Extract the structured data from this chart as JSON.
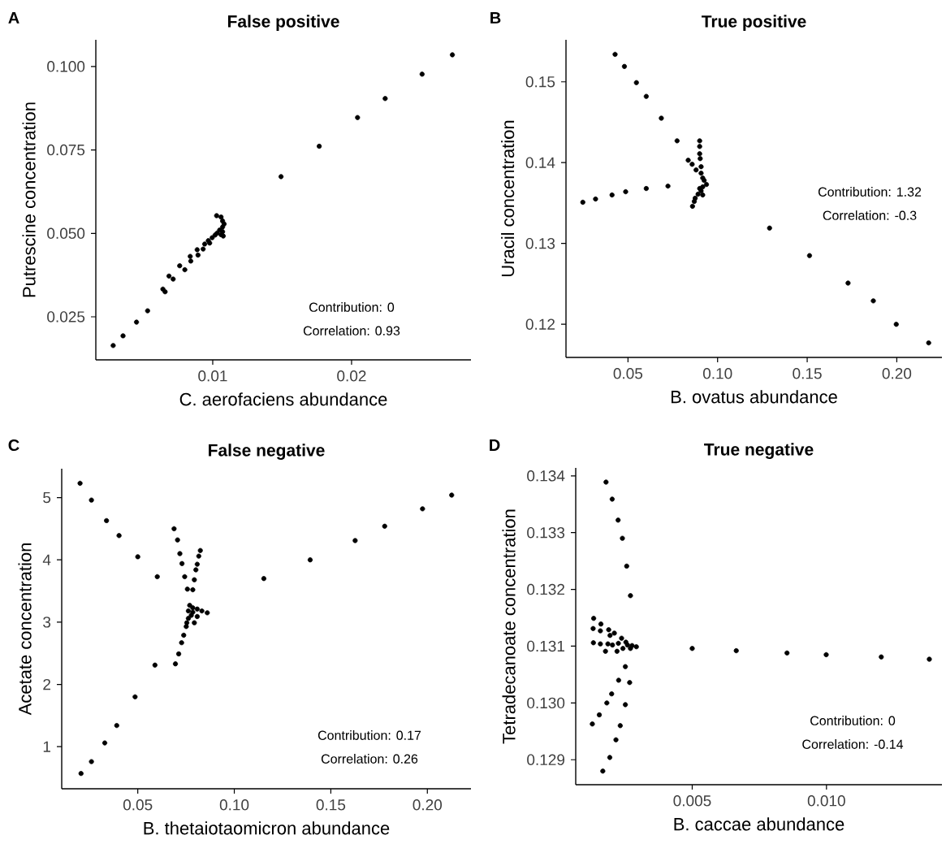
{
  "chart_data": [
    {
      "type": "scatter",
      "title": "False positive",
      "xlabel": "C. aerofaciens abundance",
      "ylabel": "Putrescine concentration",
      "annotations": [
        "A",
        "Contribution: 0",
        "Correlation: 0.93"
      ],
      "color": "#000000",
      "marker": "circle",
      "xlim": [
        0.00158,
        0.0286
      ],
      "ylim": [
        0.0121,
        0.108
      ],
      "xticks": [
        {
          "value": 0.01,
          "label": "0.01"
        },
        {
          "value": 0.02,
          "label": "0.02"
        }
      ],
      "yticks": [
        {
          "value": 0.025,
          "label": "0.025"
        },
        {
          "value": 0.05,
          "label": "0.050"
        },
        {
          "value": 0.075,
          "label": "0.075"
        },
        {
          "value": 0.1,
          "label": "0.100"
        }
      ],
      "x": [
        0.00283,
        0.00354,
        0.00451,
        0.00531,
        0.00641,
        0.00657,
        0.00685,
        0.00715,
        0.00762,
        0.00799,
        0.00838,
        0.00842,
        0.00888,
        0.00894,
        0.00931,
        0.00942,
        0.00968,
        0.00978,
        0.00996,
        0.01017,
        0.01032,
        0.0105,
        0.01071,
        0.01076,
        0.01071,
        0.01082,
        0.01071,
        0.0106,
        0.01028,
        0.0106,
        0.01492,
        0.01767,
        0.02043,
        0.02242,
        0.02508,
        0.02726
      ],
      "values": [
        0.0164,
        0.0193,
        0.0234,
        0.0268,
        0.0333,
        0.0325,
        0.0372,
        0.0363,
        0.0403,
        0.0391,
        0.0431,
        0.0417,
        0.0451,
        0.0435,
        0.0453,
        0.0468,
        0.0478,
        0.0471,
        0.0487,
        0.0495,
        0.0501,
        0.051,
        0.0505,
        0.0492,
        0.0519,
        0.0528,
        0.0537,
        0.0549,
        0.0553,
        0.0496,
        0.067,
        0.0761,
        0.0847,
        0.0904,
        0.0977,
        0.1035
      ]
    },
    {
      "type": "scatter",
      "title": "True positive",
      "xlabel": "B. ovatus abundance",
      "ylabel": "Uracil concentration",
      "annotations": [
        "B",
        "Contribution: 1.32",
        "Correlation: -0.3"
      ],
      "color": "#000000",
      "marker": "circle",
      "xlim": [
        0.0154,
        0.2252
      ],
      "ylim": [
        0.1159,
        0.1552
      ],
      "xticks": [
        {
          "value": 0.05,
          "label": "0.05"
        },
        {
          "value": 0.1,
          "label": "0.10"
        },
        {
          "value": 0.15,
          "label": "0.15"
        },
        {
          "value": 0.2,
          "label": "0.20"
        }
      ],
      "yticks": [
        {
          "value": 0.12,
          "label": "0.12"
        },
        {
          "value": 0.13,
          "label": "0.13"
        },
        {
          "value": 0.14,
          "label": "0.14"
        },
        {
          "value": 0.15,
          "label": "0.15"
        }
      ],
      "x": [
        0.0428,
        0.048,
        0.0547,
        0.0602,
        0.0686,
        0.0774,
        0.0836,
        0.0858,
        0.09,
        0.09,
        0.09,
        0.0903,
        0.0908,
        0.088,
        0.0908,
        0.0917,
        0.0925,
        0.0938,
        0.0917,
        0.0908,
        0.0917,
        0.0891,
        0.0875,
        0.087,
        0.086,
        0.09,
        0.0248,
        0.0319,
        0.0411,
        0.0487,
        0.0602,
        0.0723,
        0.129,
        0.1513,
        0.1728,
        0.1869,
        0.1997,
        0.2178
      ],
      "values": [
        0.1534,
        0.1519,
        0.1499,
        0.1482,
        0.1455,
        0.1427,
        0.1403,
        0.1398,
        0.1427,
        0.142,
        0.1411,
        0.1405,
        0.1395,
        0.1391,
        0.1387,
        0.1381,
        0.1378,
        0.1373,
        0.137,
        0.1365,
        0.136,
        0.1361,
        0.1356,
        0.1352,
        0.1346,
        0.1368,
        0.1351,
        0.1355,
        0.136,
        0.1364,
        0.1368,
        0.1371,
        0.1319,
        0.1285,
        0.1251,
        0.1229,
        0.12,
        0.1177
      ]
    },
    {
      "type": "scatter",
      "title": "False negative",
      "xlabel": "B. thetaiotaomicron abundance",
      "ylabel": "Acetate concentration",
      "annotations": [
        "C",
        "Contribution: 0.17",
        "Correlation: 0.26"
      ],
      "color": "#000000",
      "marker": "circle",
      "xlim": [
        0.0106,
        0.2226
      ],
      "ylim": [
        0.324,
        5.464
      ],
      "xticks": [
        {
          "value": 0.05,
          "label": "0.05"
        },
        {
          "value": 0.1,
          "label": "0.10"
        },
        {
          "value": 0.15,
          "label": "0.15"
        },
        {
          "value": 0.2,
          "label": "0.20"
        }
      ],
      "yticks": [
        1,
        2,
        3,
        4,
        5
      ],
      "x": [
        0.0201,
        0.026,
        0.0338,
        0.0403,
        0.05,
        0.0601,
        0.0688,
        0.0706,
        0.0718,
        0.0729,
        0.0743,
        0.0757,
        0.0785,
        0.0793,
        0.0801,
        0.0808,
        0.0816,
        0.0824,
        0.0769,
        0.0785,
        0.0808,
        0.0832,
        0.086,
        0.0762,
        0.0777,
        0.0762,
        0.0754,
        0.0751,
        0.0793,
        0.0808,
        0.0785,
        0.0738,
        0.0727,
        0.0712,
        0.0695,
        0.0589,
        0.0486,
        0.0391,
        0.0329,
        0.026,
        0.0206,
        0.1153,
        0.1393,
        0.1626,
        0.1779,
        0.1975,
        0.2126
      ],
      "values": [
        5.23,
        4.96,
        4.63,
        4.39,
        4.05,
        3.73,
        4.5,
        4.32,
        4.1,
        3.94,
        3.73,
        3.53,
        3.52,
        3.68,
        3.84,
        3.93,
        4.06,
        4.15,
        3.27,
        3.23,
        3.21,
        3.18,
        3.15,
        3.18,
        3.11,
        3.06,
        2.99,
        2.93,
        2.99,
        3.09,
        3.16,
        2.79,
        2.67,
        2.49,
        2.33,
        2.31,
        1.8,
        1.34,
        1.06,
        0.76,
        0.57,
        3.7,
        4.0,
        4.31,
        4.54,
        4.82,
        5.04
      ]
    },
    {
      "type": "scatter",
      "title": "True negative",
      "xlabel": "B. caccae abundance",
      "ylabel": "Tetradecanoate concentration",
      "annotations": [
        "D",
        "Contribution: 0",
        "Correlation: -0.14"
      ],
      "color": "#000000",
      "marker": "circle",
      "xlim": [
        0.000662,
        0.0143
      ],
      "ylim": [
        0.12856,
        0.13414
      ],
      "xticks": [
        {
          "value": 0.005,
          "label": "0.005"
        },
        {
          "value": 0.01,
          "label": "0.010"
        }
      ],
      "yticks": [
        0.129,
        {
          "value": 0.13,
          "label": "0.130"
        },
        0.131,
        0.132,
        0.133,
        0.134
      ],
      "x": [
        0.00179,
        0.00202,
        0.00224,
        0.0024,
        0.00256,
        0.0027,
        0.00133,
        0.00131,
        0.0016,
        0.00158,
        0.00189,
        0.0021,
        0.00194,
        0.00237,
        0.00132,
        0.00158,
        0.00186,
        0.00203,
        0.00225,
        0.00253,
        0.00259,
        0.00276,
        0.00292,
        0.00177,
        0.0022,
        0.00242,
        0.0027,
        0.00251,
        0.00267,
        0.00226,
        0.002,
        0.00182,
        0.00251,
        0.00154,
        0.00128,
        0.00232,
        0.00216,
        0.00193,
        0.00167,
        0.005,
        0.00664,
        0.00853,
        0.00999,
        0.01204,
        0.01383
      ],
      "values": [
        0.13389,
        0.13359,
        0.13322,
        0.1329,
        0.13241,
        0.13189,
        0.13149,
        0.13131,
        0.13139,
        0.13127,
        0.13129,
        0.13123,
        0.13119,
        0.13114,
        0.13106,
        0.13104,
        0.13104,
        0.13102,
        0.13105,
        0.13107,
        0.13102,
        0.13101,
        0.13099,
        0.13091,
        0.13091,
        0.13096,
        0.13096,
        0.13064,
        0.13036,
        0.1304,
        0.13016,
        0.13,
        0.12997,
        0.12979,
        0.12963,
        0.1296,
        0.12935,
        0.12904,
        0.1288,
        0.13096,
        0.13092,
        0.13088,
        0.13085,
        0.13081,
        0.13077
      ]
    }
  ]
}
